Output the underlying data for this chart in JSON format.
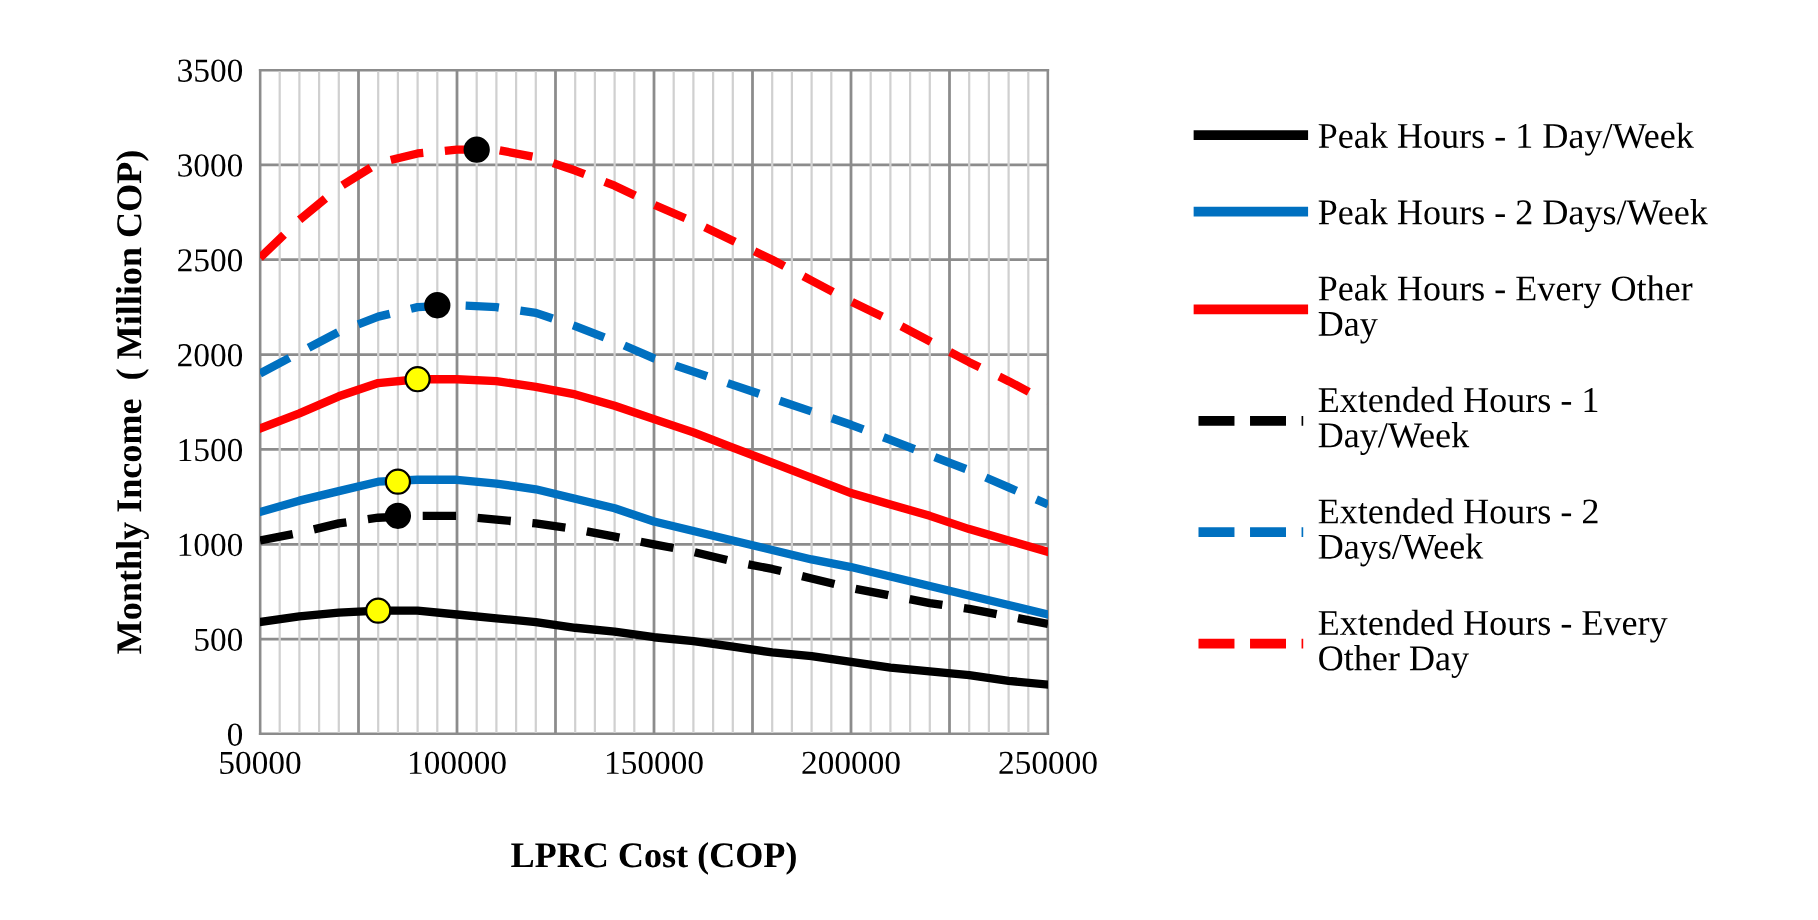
{
  "chart_data": {
    "type": "line",
    "xlabel": "LPRC Cost (COP)",
    "ylabel": "Monthly Income  ( Million COP)",
    "x": [
      50000,
      60000,
      70000,
      80000,
      90000,
      100000,
      110000,
      120000,
      130000,
      140000,
      150000,
      160000,
      170000,
      180000,
      190000,
      200000,
      210000,
      220000,
      230000,
      240000,
      250000
    ],
    "xlim": [
      50000,
      250000
    ],
    "xticks": [
      50000,
      100000,
      150000,
      200000,
      250000
    ],
    "ylim": [
      0,
      3500
    ],
    "yticks": [
      0,
      500,
      1000,
      1500,
      2000,
      2500,
      3000,
      3500
    ],
    "grid": true,
    "legend": "right",
    "marker": "none",
    "series": [
      {
        "name": "Peak Hours - 1 Day/Week",
        "color": "#000000",
        "line_style": "solid",
        "values": [
          590,
          620,
          640,
          650,
          650,
          630,
          610,
          590,
          560,
          540,
          510,
          490,
          460,
          430,
          410,
          380,
          350,
          330,
          310,
          280,
          260
        ]
      },
      {
        "name": "Peak Hours - 2 Days/Week",
        "color": "#0070c0",
        "line_style": "solid",
        "values": [
          1170,
          1230,
          1280,
          1330,
          1340,
          1340,
          1320,
          1290,
          1240,
          1190,
          1120,
          1070,
          1020,
          970,
          920,
          880,
          830,
          780,
          730,
          680,
          630
        ]
      },
      {
        "name": "Peak Hours - Every Other Day",
        "color": "#ff0000",
        "line_style": "solid",
        "values": [
          1610,
          1690,
          1780,
          1850,
          1870,
          1870,
          1860,
          1830,
          1790,
          1730,
          1660,
          1590,
          1510,
          1430,
          1350,
          1270,
          1210,
          1150,
          1080,
          1020,
          960
        ]
      },
      {
        "name": "Extended Hours - 1 Day/Week",
        "color": "#000000",
        "line_style": "dashed",
        "values": [
          1020,
          1060,
          1110,
          1140,
          1150,
          1150,
          1130,
          1110,
          1080,
          1040,
          1000,
          960,
          910,
          870,
          820,
          770,
          730,
          690,
          660,
          620,
          580
        ]
      },
      {
        "name": "Extended Hours - 2 Days/Week",
        "color": "#0070c0",
        "line_style": "dashed",
        "values": [
          1900,
          2010,
          2120,
          2200,
          2250,
          2260,
          2250,
          2220,
          2150,
          2070,
          1980,
          1910,
          1840,
          1770,
          1700,
          1630,
          1550,
          1470,
          1390,
          1300,
          1210
        ]
      },
      {
        "name": "Extended Hours - Every Other Day",
        "color": "#ff0000",
        "line_style": "dashed",
        "values": [
          2510,
          2710,
          2880,
          3010,
          3060,
          3080,
          3080,
          3040,
          2970,
          2890,
          2790,
          2700,
          2600,
          2500,
          2390,
          2280,
          2180,
          2070,
          1960,
          1860,
          1750
        ]
      },
      {
        "type": "scatter",
        "color": "#ffff00",
        "marker": "circle",
        "x": [
          80000,
          85000,
          90000
        ],
        "values": [
          650,
          1330,
          1870
        ]
      },
      {
        "type": "scatter",
        "color": "#000000",
        "marker": "circle",
        "x": [
          85000,
          95000,
          105000
        ],
        "values": [
          1150,
          2260,
          3080
        ]
      }
    ]
  }
}
